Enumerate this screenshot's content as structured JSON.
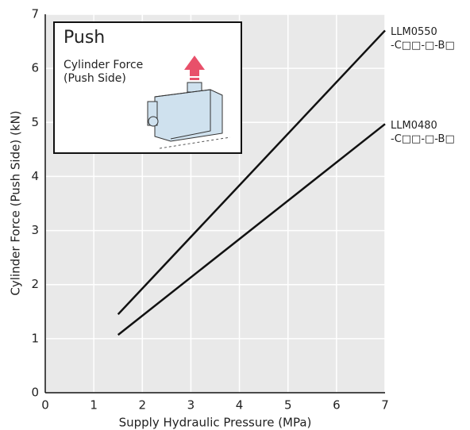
{
  "chart_data": {
    "type": "line",
    "xlabel": "Supply Hydraulic Pressure (MPa)",
    "ylabel": "Cylinder Force (Push Side) (kN)",
    "x": [
      1.5,
      7
    ],
    "series": [
      {
        "name": "LLM0550\n-C□□-□-B□",
        "color": "#111111",
        "values": [
          1.45,
          6.7
        ]
      },
      {
        "name": "LLM0480\n-C□□-□-B□",
        "color": "#111111",
        "values": [
          1.07,
          4.97
        ]
      }
    ],
    "xlim": [
      0,
      7
    ],
    "xticks": [
      0,
      1,
      2,
      3,
      4,
      5,
      6,
      7
    ],
    "ylim": [
      0,
      7
    ],
    "yticks": [
      0,
      1,
      2,
      3,
      4,
      5,
      6,
      7
    ],
    "grid": true,
    "inset": {
      "title": "Push",
      "caption": "Cylinder Force\n(Push Side)"
    }
  }
}
